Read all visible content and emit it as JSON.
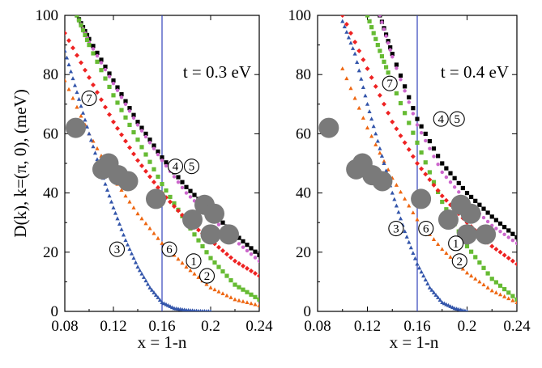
{
  "figure": {
    "ylabel": "D(k), k=(π, 0),  (meV)",
    "xlabel": "x = 1-n"
  },
  "colors": {
    "black_squares": "#000000",
    "magenta_dots": "#cc66cc",
    "green_squares": "#66bb33",
    "red_diamonds": "#ee2222",
    "orange_triangles": "#ee6611",
    "blue_triangles": "#3355aa",
    "gray_circles": "#7a7a7a",
    "vline": "#3344bb"
  },
  "chart_data": [
    {
      "type": "scatter",
      "panel": "left",
      "annotation": "t = 0.3 eV",
      "xlim": [
        0.08,
        0.24
      ],
      "ylim": [
        0,
        100
      ],
      "xticks": [
        "0.08",
        "0.12",
        "0.16",
        "0.2",
        "0.24"
      ],
      "yticks": [
        "0",
        "20",
        "40",
        "60",
        "80",
        "100"
      ],
      "vline_x": 0.16,
      "series": [
        {
          "name": "4-5 black squares",
          "marker": "square",
          "color_key": "black_squares",
          "x": [
            0.09,
            0.1,
            0.12,
            0.14,
            0.16,
            0.18,
            0.2,
            0.22,
            0.24
          ],
          "y": [
            100,
            92,
            78,
            64,
            52,
            42,
            34,
            26,
            19
          ]
        },
        {
          "name": "4-5 magenta",
          "marker": "dot",
          "color_key": "magenta_dots",
          "x": [
            0.09,
            0.1,
            0.12,
            0.14,
            0.16,
            0.18,
            0.2,
            0.22,
            0.24
          ],
          "y": [
            100,
            91,
            77,
            63,
            51,
            40,
            32,
            24,
            17
          ]
        },
        {
          "name": "1-2 green squares",
          "marker": "square",
          "color_key": "green_squares",
          "x": [
            0.09,
            0.1,
            0.12,
            0.14,
            0.16,
            0.18,
            0.2,
            0.22,
            0.24
          ],
          "y": [
            100,
            90,
            73,
            58,
            43,
            30,
            18,
            9,
            4
          ]
        },
        {
          "name": "7 red diamonds",
          "marker": "diamond",
          "color_key": "red_diamonds",
          "x": [
            0.08,
            0.1,
            0.12,
            0.14,
            0.16,
            0.18,
            0.2,
            0.22,
            0.24
          ],
          "y": [
            94,
            79,
            64,
            51,
            40,
            31,
            24,
            17,
            12
          ]
        },
        {
          "name": "6 orange triangles",
          "marker": "triangle",
          "color_key": "orange_triangles",
          "x": [
            0.08,
            0.1,
            0.12,
            0.14,
            0.16,
            0.18,
            0.2,
            0.22,
            0.24
          ],
          "y": [
            78,
            60,
            45,
            33,
            23,
            15,
            8,
            4,
            2
          ]
        },
        {
          "name": "3 blue triangles",
          "marker": "triangle",
          "color_key": "blue_triangles",
          "x": [
            0.08,
            0.09,
            0.1,
            0.11,
            0.12,
            0.13,
            0.14,
            0.15,
            0.16,
            0.17,
            0.18,
            0.19,
            0.2
          ],
          "y": [
            88,
            74,
            60,
            47,
            35,
            24,
            15,
            8,
            3,
            1,
            0.4,
            0.1,
            0
          ]
        },
        {
          "name": "experiment",
          "marker": "circle",
          "color_key": "gray_circles",
          "x": [
            0.089,
            0.111,
            0.116,
            0.124,
            0.132,
            0.155,
            0.185,
            0.195,
            0.203,
            0.2,
            0.215
          ],
          "y": [
            62,
            48,
            50,
            46,
            44,
            38,
            31,
            36,
            33,
            26,
            26
          ]
        }
      ],
      "labels": [
        {
          "text": "⑦",
          "x": 0.1,
          "y": 72
        },
        {
          "text": "④⑤",
          "x": 0.171,
          "y": 49
        },
        {
          "text": "③",
          "x": 0.123,
          "y": 21
        },
        {
          "text": "⑥",
          "x": 0.166,
          "y": 21
        },
        {
          "text": "①",
          "x": 0.186,
          "y": 17
        },
        {
          "text": "②",
          "x": 0.197,
          "y": 12
        }
      ]
    },
    {
      "type": "scatter",
      "panel": "right",
      "annotation": "t = 0.4 eV",
      "xlim": [
        0.08,
        0.24
      ],
      "ylim": [
        0,
        100
      ],
      "xticks": [
        "0.08",
        "0.12",
        "0.16",
        "0.2",
        "0.24"
      ],
      "yticks": [
        "0",
        "20",
        "40",
        "60",
        "80",
        "100"
      ],
      "vline_x": 0.16,
      "series": [
        {
          "name": "4-5 black squares",
          "marker": "square",
          "color_key": "black_squares",
          "x": [
            0.13,
            0.14,
            0.16,
            0.18,
            0.2,
            0.22,
            0.24
          ],
          "y": [
            100,
            87,
            65,
            50,
            40,
            32,
            25
          ]
        },
        {
          "name": "4-5 magenta",
          "marker": "dot",
          "color_key": "magenta_dots",
          "x": [
            0.13,
            0.14,
            0.16,
            0.18,
            0.2,
            0.22,
            0.24
          ],
          "y": [
            100,
            86,
            63,
            47,
            37,
            29,
            23
          ]
        },
        {
          "name": "1-2 green squares",
          "marker": "square",
          "color_key": "green_squares",
          "x": [
            0.12,
            0.13,
            0.14,
            0.16,
            0.18,
            0.2,
            0.22,
            0.24
          ],
          "y": [
            100,
            88,
            77,
            57,
            37,
            22,
            11,
            4
          ]
        },
        {
          "name": "7 red diamonds",
          "marker": "diamond",
          "color_key": "red_diamonds",
          "x": [
            0.1,
            0.12,
            0.14,
            0.16,
            0.18,
            0.2,
            0.22,
            0.24
          ],
          "y": [
            100,
            82,
            64,
            50,
            39,
            30,
            22,
            16
          ]
        },
        {
          "name": "6 orange triangles",
          "marker": "triangle",
          "color_key": "orange_triangles",
          "x": [
            0.1,
            0.12,
            0.14,
            0.16,
            0.18,
            0.2,
            0.22,
            0.24
          ],
          "y": [
            82,
            62,
            45,
            31,
            21,
            13,
            7,
            3
          ]
        },
        {
          "name": "3 blue triangles",
          "marker": "triangle",
          "color_key": "blue_triangles",
          "x": [
            0.1,
            0.11,
            0.12,
            0.13,
            0.14,
            0.15,
            0.16,
            0.17,
            0.18,
            0.19,
            0.2
          ],
          "y": [
            98,
            87,
            70,
            55,
            40,
            27,
            16,
            8,
            3,
            1,
            0
          ]
        },
        {
          "name": "experiment",
          "marker": "circle",
          "color_key": "gray_circles",
          "x": [
            0.089,
            0.111,
            0.116,
            0.124,
            0.132,
            0.163,
            0.185,
            0.195,
            0.203,
            0.2,
            0.215
          ],
          "y": [
            62,
            48,
            50,
            46,
            44,
            38,
            31,
            36,
            33,
            26,
            26
          ]
        }
      ],
      "labels": [
        {
          "text": "⑦",
          "x": 0.138,
          "y": 77
        },
        {
          "text": "④⑤",
          "x": 0.179,
          "y": 65
        },
        {
          "text": "③",
          "x": 0.143,
          "y": 28
        },
        {
          "text": "⑥",
          "x": 0.167,
          "y": 28
        },
        {
          "text": "①",
          "x": 0.191,
          "y": 23
        },
        {
          "text": "②",
          "x": 0.194,
          "y": 17
        }
      ]
    }
  ]
}
